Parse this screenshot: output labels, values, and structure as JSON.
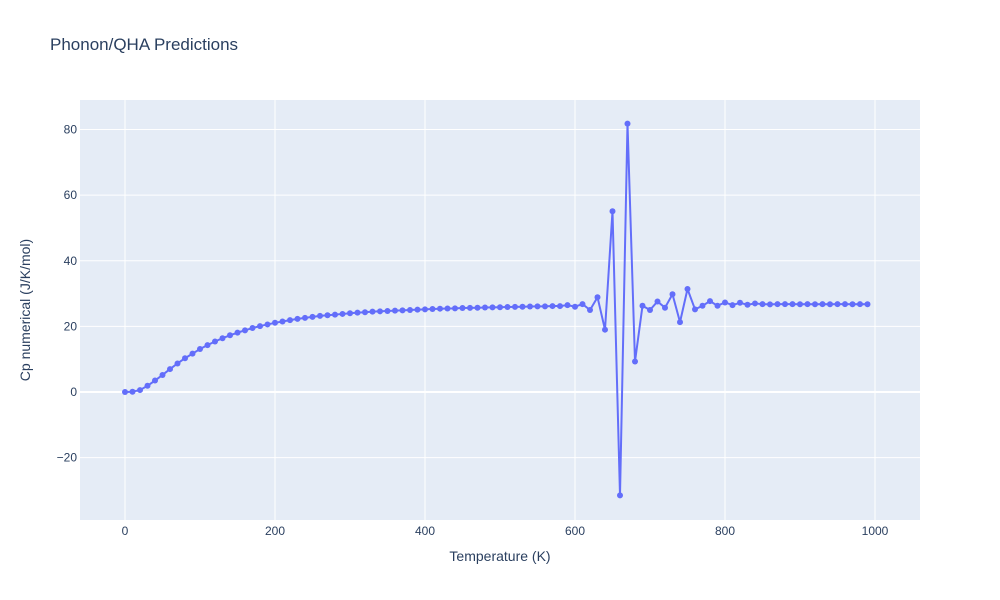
{
  "chart_data": {
    "type": "line",
    "title": "Phonon/QHA Predictions",
    "xlabel": "Temperature (K)",
    "ylabel": "Cp numerical (J/K/mol)",
    "xlim": [
      -60,
      1060
    ],
    "ylim": [
      -39,
      89
    ],
    "xticks": [
      0,
      200,
      400,
      600,
      800,
      1000
    ],
    "yticks": [
      -20,
      0,
      20,
      40,
      60,
      80
    ],
    "grid": true,
    "colors": {
      "line": "#636efa",
      "plot_bg": "#e5ecf6",
      "grid": "#ffffff",
      "text": "#2a3f5f"
    },
    "series": [
      {
        "mode": "lines+markers",
        "x": [
          0,
          10,
          20,
          30,
          40,
          50,
          60,
          70,
          80,
          90,
          100,
          110,
          120,
          130,
          140,
          150,
          160,
          170,
          180,
          190,
          200,
          210,
          220,
          230,
          240,
          250,
          260,
          270,
          280,
          290,
          300,
          310,
          320,
          330,
          340,
          350,
          360,
          370,
          380,
          390,
          400,
          410,
          420,
          430,
          440,
          450,
          460,
          470,
          480,
          490,
          500,
          510,
          520,
          530,
          540,
          550,
          560,
          570,
          580,
          590,
          600,
          610,
          620,
          630,
          640,
          650,
          660,
          670,
          680,
          690,
          700,
          710,
          720,
          730,
          740,
          750,
          760,
          770,
          780,
          790,
          800,
          810,
          820,
          830,
          840,
          850,
          860,
          870,
          880,
          890,
          900,
          910,
          920,
          930,
          940,
          950,
          960,
          970,
          980,
          990
        ],
        "y": [
          0,
          0.1,
          0.6,
          1.9,
          3.5,
          5.2,
          7.0,
          8.7,
          10.3,
          11.7,
          13.1,
          14.3,
          15.4,
          16.4,
          17.3,
          18.1,
          18.8,
          19.5,
          20.1,
          20.6,
          21.1,
          21.5,
          21.9,
          22.3,
          22.6,
          22.9,
          23.2,
          23.4,
          23.6,
          23.8,
          24.0,
          24.2,
          24.3,
          24.5,
          24.6,
          24.7,
          24.8,
          24.9,
          25.0,
          25.1,
          25.2,
          25.3,
          25.4,
          25.45,
          25.5,
          25.6,
          25.65,
          25.7,
          25.75,
          25.8,
          25.85,
          25.9,
          25.95,
          26.0,
          26.05,
          26.1,
          26.1,
          26.2,
          26.2,
          26.5,
          26.0,
          26.8,
          25.0,
          28.9,
          19.0,
          55.1,
          -31.5,
          81.8,
          9.3,
          26.3,
          25.0,
          27.6,
          25.7,
          29.8,
          21.3,
          31.4,
          25.2,
          26.3,
          27.7,
          26.3,
          27.3,
          26.5,
          27.2,
          26.6,
          27.0,
          26.8,
          26.7,
          26.8,
          26.8,
          26.8,
          26.75,
          26.8,
          26.75,
          26.8,
          26.75,
          26.8,
          26.8,
          26.75,
          26.8,
          26.75
        ]
      }
    ]
  }
}
